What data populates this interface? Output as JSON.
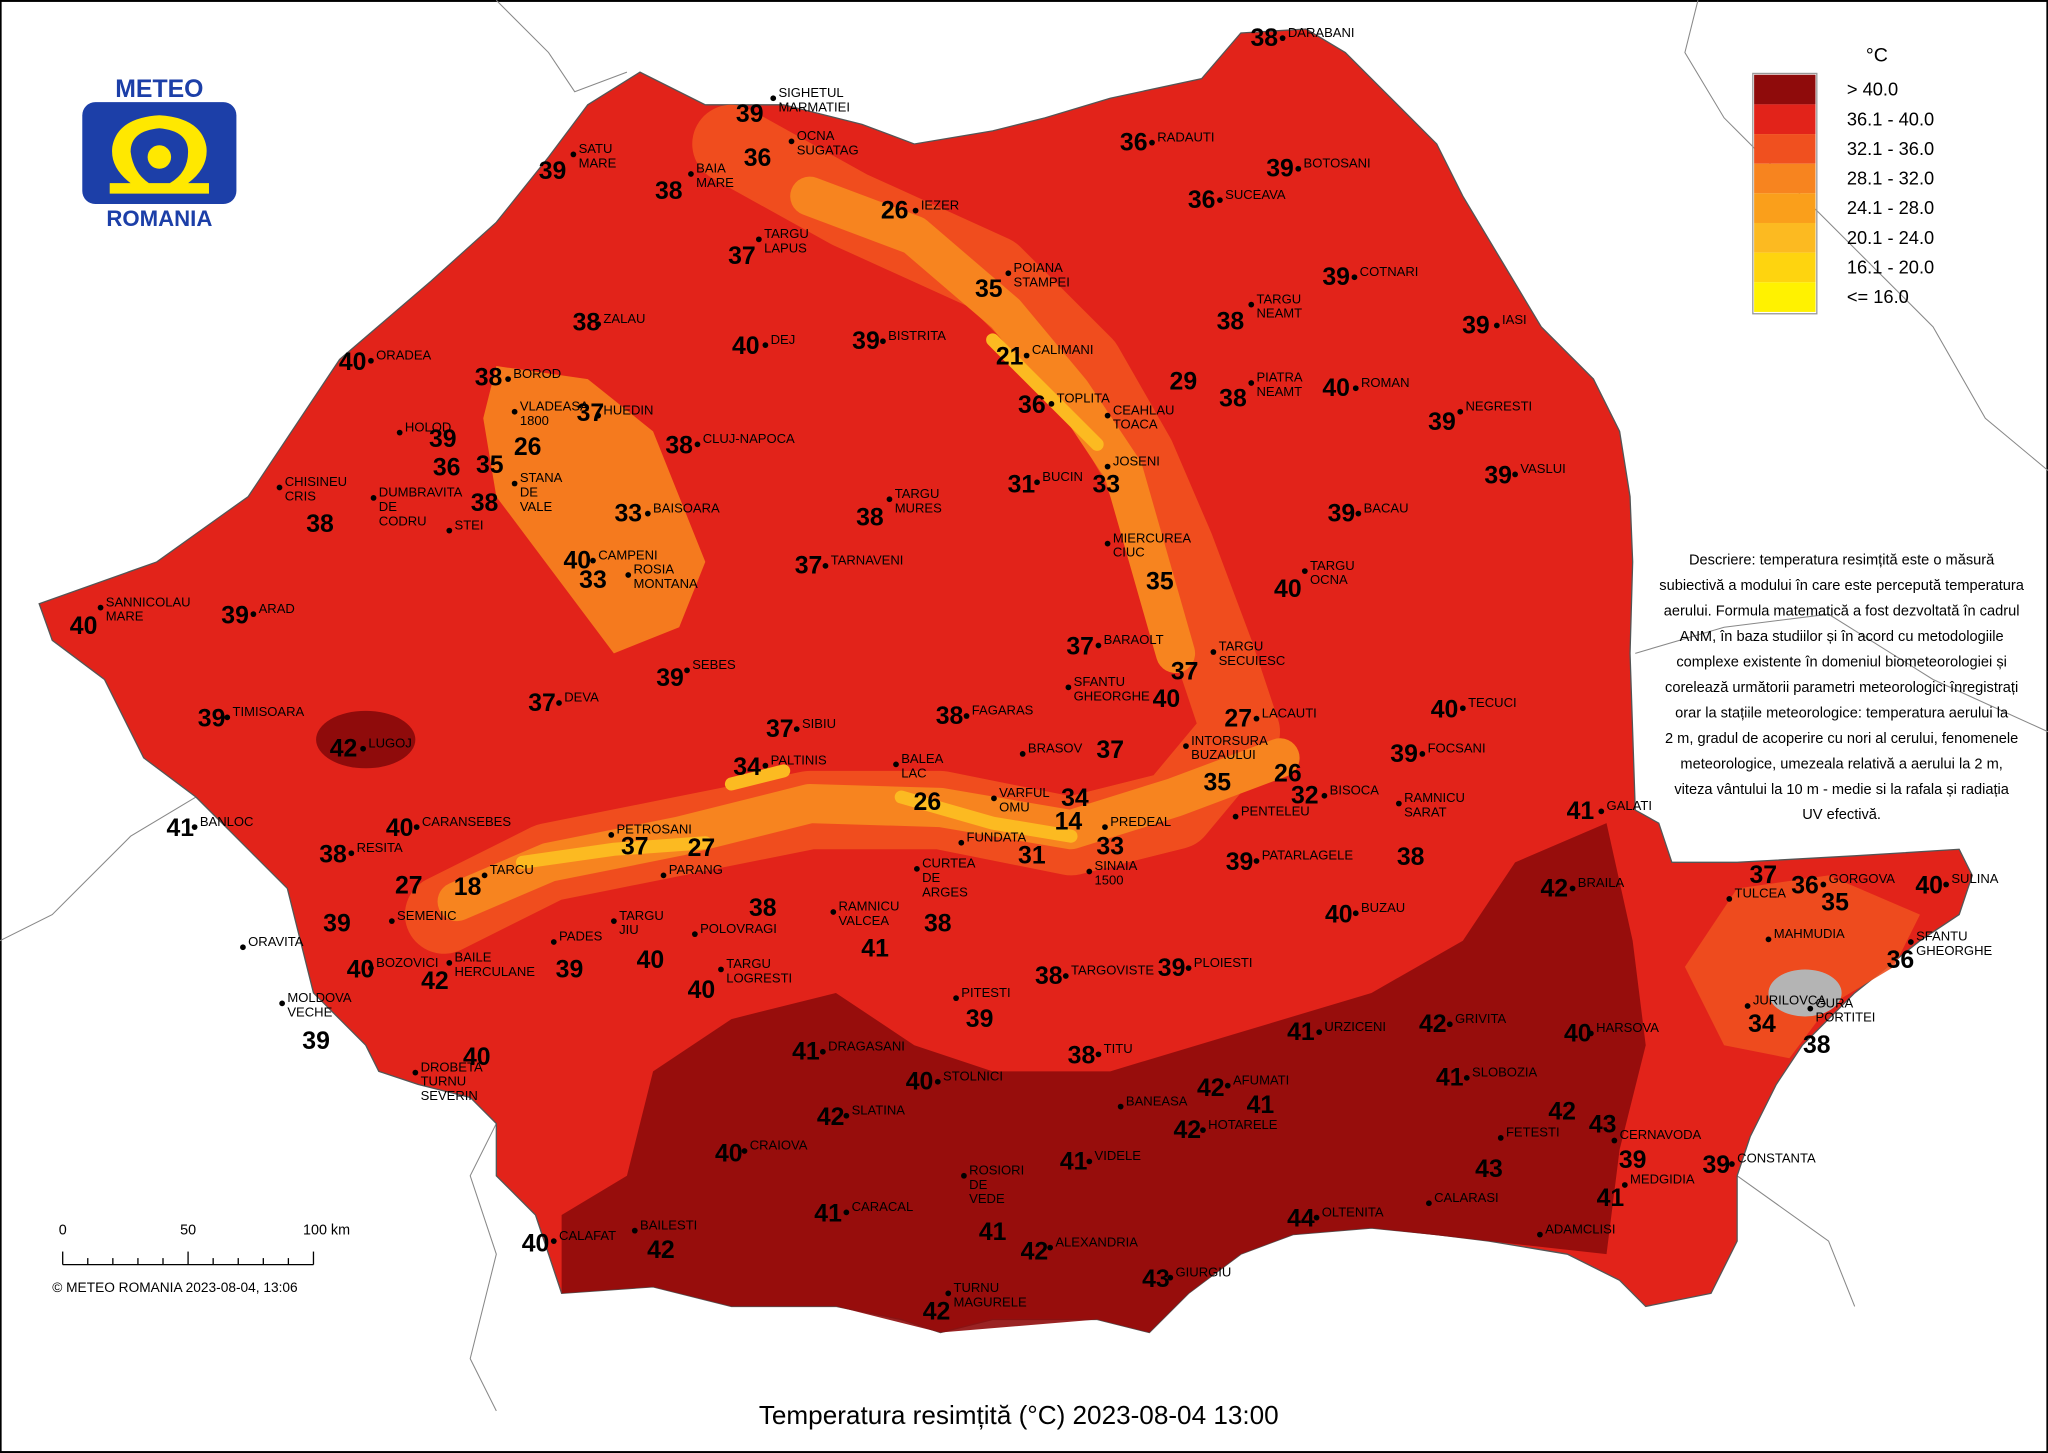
{
  "logo": {
    "top": "METEO",
    "bottom": "ROMANIA"
  },
  "legend": {
    "title": "°C",
    "items": [
      {
        "label": "> 40.0",
        "color": "#8f0b0b"
      },
      {
        "label": "36.1 - 40.0",
        "color": "#e2231a"
      },
      {
        "label": "32.1 - 36.0",
        "color": "#f0501f"
      },
      {
        "label": "28.1 - 32.0",
        "color": "#f7841f"
      },
      {
        "label": "24.1 - 28.0",
        "color": "#fa9f1b"
      },
      {
        "label": "20.1 - 24.0",
        "color": "#fcba21"
      },
      {
        "label": "16.1 - 20.0",
        "color": "#fed40f"
      },
      {
        "label": "<= 16.0",
        "color": "#fff200"
      }
    ]
  },
  "description": [
    "Descriere: temperatura resimțită este o măsură",
    "subiectivă a modului în care este percepută temperatura",
    "aerului. Formula matematică a fost dezvoltată în cadrul",
    "ANM, în baza studiilor și în acord cu metodologiile",
    "complexe existente în domeniul biometeorologiei și",
    "corelează următorii parametri meteorologici înregistrați",
    "orar la stațiile meteorologice: temperatura aerului la",
    "2 m, gradul de acoperire cu nori al cerului, fenomenele",
    "meteorologice, umezeala relativă a aerului la 2 m,",
    "viteza vântului la 10 m - medie si la rafala și radiația",
    "UV efectivă."
  ],
  "scale_bar": {
    "labels": [
      "0",
      "50",
      "100 km"
    ]
  },
  "copyright": "© METEO ROMANIA 2023-08-04, 13:06",
  "title": "Temperatura resimțită (°C) 2023-08-04 13:00",
  "stations": [
    {
      "name": [
        "DARABANI"
      ],
      "value": 38
    },
    {
      "name": [
        "SIGHETUL",
        "MARMATIEI"
      ],
      "value": 39
    },
    {
      "name": [
        "OCNA",
        "SUGATAG"
      ],
      "value": 36
    },
    {
      "name": [
        "SATU",
        "MARE"
      ],
      "value": 39
    },
    {
      "name": [
        "BAIA",
        "MARE"
      ],
      "value": 38
    },
    {
      "name": [
        "IEZER"
      ],
      "value": 26
    },
    {
      "name": [
        "RADAUTI"
      ],
      "value": 36
    },
    {
      "name": [
        "BOTOSANI"
      ],
      "value": 39
    },
    {
      "name": [
        "SUCEAVA"
      ],
      "value": 36
    },
    {
      "name": [
        "TARGU",
        "LAPUS"
      ],
      "value": 37
    },
    {
      "name": [
        "POIANA",
        "STAMPEI"
      ],
      "value": 35
    },
    {
      "name": [
        "COTNARI"
      ],
      "value": 39
    },
    {
      "name": [
        "ZALAU"
      ],
      "value": 38
    },
    {
      "name": [
        "TARGU",
        "NEAMT"
      ],
      "value": 38
    },
    {
      "name": [
        "IASI"
      ],
      "value": 39
    },
    {
      "name": [
        "DEJ"
      ],
      "value": 40
    },
    {
      "name": [
        "BISTRITA"
      ],
      "value": 39
    },
    {
      "name": [
        "CALIMANI"
      ],
      "value": 21
    },
    {
      "name": [
        "ORADEA"
      ],
      "value": 40
    },
    {
      "name": [
        "BOROD"
      ],
      "value": 38
    },
    {
      "name": [
        "PIATRA",
        "NEAMT"
      ],
      "value": 38
    },
    {
      "name": [
        "ROMAN"
      ],
      "value": 40
    },
    {
      "name": [
        "TOPLITA"
      ],
      "value": 36
    },
    {
      "name": [
        "CEAHLAU",
        "TOACA"
      ],
      "value": 29
    },
    {
      "name": [
        "VLADEASA",
        "1800"
      ],
      "value": 26
    },
    {
      "name": [
        "HUEDIN"
      ],
      "value": 37
    },
    {
      "name": [
        "STANA",
        "DE",
        "VALE"
      ],
      "value": 35
    },
    {
      "name": [
        "NEGRESTI"
      ],
      "value": 39
    },
    {
      "name": [
        "HOLOD"
      ],
      "value": 39
    },
    {
      "name": [
        "CLUJ-NAPOCA"
      ],
      "value": 38
    },
    {
      "name": [
        "DUMBRAVITA",
        "DE",
        "CODRU"
      ],
      "value": 36
    },
    {
      "name": [
        "JOSENI"
      ],
      "value": 33
    },
    {
      "name": [
        "BUCIN"
      ],
      "value": 31
    },
    {
      "name": [
        "VASLUI"
      ],
      "value": 39
    },
    {
      "name": [
        "CHISINEU",
        "CRIS"
      ],
      "value": 38
    },
    {
      "name": [
        "STEI"
      ],
      "value": 38
    },
    {
      "name": [
        "BAISOARA"
      ],
      "value": 33
    },
    {
      "name": [
        "TARGU",
        "MURES"
      ],
      "value": 38
    },
    {
      "name": [
        "BACAU"
      ],
      "value": 39
    },
    {
      "name": [
        "CAMPENI"
      ],
      "value": 40
    },
    {
      "name": [
        "ROSIA",
        "MONTANA"
      ],
      "value": 33
    },
    {
      "name": [
        "TARNAVENI"
      ],
      "value": 37
    },
    {
      "name": [
        "MIERCUREA",
        "CIUC"
      ],
      "value": 35
    },
    {
      "name": [
        "TARGU",
        "OCNA"
      ],
      "value": 40
    },
    {
      "name": [
        "SANNICOLAU",
        "MARE"
      ],
      "value": 40
    },
    {
      "name": [
        "ARAD"
      ],
      "value": 39
    },
    {
      "name": [
        "BARAOLT"
      ],
      "value": 37
    },
    {
      "name": [
        "SEBES"
      ],
      "value": 39
    },
    {
      "name": [
        "TARGU",
        "SECUIESC"
      ],
      "value": 37
    },
    {
      "name": [
        "SFANTU",
        "GHEORGHE"
      ],
      "value": 40
    },
    {
      "name": [
        "DEVA"
      ],
      "value": 37
    },
    {
      "name": [
        "LACAUTI"
      ],
      "value": 27
    },
    {
      "name": [
        "TECUCI"
      ],
      "value": 40
    },
    {
      "name": [
        "TIMISOARA"
      ],
      "value": 39
    },
    {
      "name": [
        "SIBIU"
      ],
      "value": 37
    },
    {
      "name": [
        "FAGARAS"
      ],
      "value": 38
    },
    {
      "name": [
        "INTORSURA",
        "BUZAULUI"
      ],
      "value": 35
    },
    {
      "name": [
        "LUGOJ"
      ],
      "value": 42
    },
    {
      "name": [
        "BRASOV"
      ],
      "value": 37
    },
    {
      "name": [
        "PALTINIS"
      ],
      "value": 34
    },
    {
      "name": [
        "FOCSANI"
      ],
      "value": 39
    },
    {
      "name": [
        "BALEA",
        "LAC"
      ],
      "value": 26
    },
    {
      "name": [
        "VARFUL",
        "OMU"
      ],
      "value": 34
    },
    {
      "name": [
        "PENTELEU"
      ],
      "value": 26
    },
    {
      "name": [
        "BISOCA"
      ],
      "value": 32
    },
    {
      "name": [
        "RAMNICU",
        "SARAT"
      ],
      "value": 38
    },
    {
      "name": [
        "GALATI"
      ],
      "value": 41
    },
    {
      "name": [
        "BANLOC"
      ],
      "value": 41
    },
    {
      "name": [
        "CARANSEBES"
      ],
      "value": 40
    },
    {
      "name": [
        "PETROSANI"
      ],
      "value": 37
    },
    {
      "name": [
        "PARANG"
      ],
      "value": 27
    },
    {
      "name": [
        "FUNDATA"
      ],
      "value": 31
    },
    {
      "name": [
        "PREDEAL"
      ],
      "value": 14
    },
    {
      "name": [
        "SINAIA",
        "1500"
      ],
      "value": 33
    },
    {
      "name": [
        "PATARLAGELE"
      ],
      "value": 39
    },
    {
      "name": [
        "RESITA"
      ],
      "value": 38
    },
    {
      "name": [
        "SEMENIC"
      ],
      "value": 27
    },
    {
      "name": [
        "TARCU"
      ],
      "value": 18
    },
    {
      "name": [
        "CURTEA",
        "DE",
        "ARGES"
      ],
      "value": 38
    },
    {
      "name": [
        "BRAILA"
      ],
      "value": 42
    },
    {
      "name": [
        "TULCEA"
      ],
      "value": 37
    },
    {
      "name": [
        "GORGOVA"
      ],
      "value": 36
    },
    {
      "name": [
        "SULINA"
      ],
      "value": 40
    },
    {
      "name": [
        "MAHMUDIA"
      ],
      "value": 35
    },
    {
      "name": [
        "BUZAU"
      ],
      "value": 40
    },
    {
      "name": [
        "ORAVITA"
      ],
      "value": 39
    },
    {
      "name": [
        "PADES"
      ],
      "value": 39
    },
    {
      "name": [
        "TARGU",
        "JIU"
      ],
      "value": 40
    },
    {
      "name": [
        "POLOVRAGI"
      ],
      "value": 38
    },
    {
      "name": [
        "RAMNICU",
        "VALCEA"
      ],
      "value": 41
    },
    {
      "name": [
        "SFANTU",
        "GHEORGHE"
      ],
      "value": 36
    },
    {
      "name": [
        "BAILE",
        "HERCULANE"
      ],
      "value": 42
    },
    {
      "name": [
        "BOZOVICI"
      ],
      "value": 40
    },
    {
      "name": [
        "TARGOVISTE"
      ],
      "value": 38
    },
    {
      "name": [
        "PLOIESTI"
      ],
      "value": 39
    },
    {
      "name": [
        "TARGU",
        "LOGRESTI"
      ],
      "value": 40
    },
    {
      "name": [
        "PITESTI"
      ],
      "value": 39
    },
    {
      "name": [
        "MOLDOVA",
        "VECHE"
      ],
      "value": 39
    },
    {
      "name": [
        "JURILOVCA"
      ],
      "value": 34
    },
    {
      "name": [
        "GURA",
        "PORTITEI"
      ],
      "value": 38
    },
    {
      "name": [
        "URZICENI"
      ],
      "value": 41
    },
    {
      "name": [
        "GRIVITA"
      ],
      "value": 42
    },
    {
      "name": [
        "HARSOVA"
      ],
      "value": 40
    },
    {
      "name": [
        "DROBETA",
        "TURNU",
        "SEVERIN"
      ],
      "value": 40
    },
    {
      "name": [
        "TITU"
      ],
      "value": 38
    },
    {
      "name": [
        "DRAGASANI"
      ],
      "value": 41
    },
    {
      "name": [
        "SLOBOZIA"
      ],
      "value": 41
    },
    {
      "name": [
        "STOLNICI"
      ],
      "value": 40
    },
    {
      "name": [
        "AFUMATI"
      ],
      "value": 42
    },
    {
      "name": [
        "BANEASA"
      ],
      "value": 41
    },
    {
      "name": [
        "FETESTI"
      ],
      "value": 42
    },
    {
      "name": [
        "CERNAVODA"
      ],
      "value": 43
    },
    {
      "name": [
        "SLATINA"
      ],
      "value": 42
    },
    {
      "name": [
        "HOTARELE"
      ],
      "value": 42
    },
    {
      "name": [
        "CRAIOVA"
      ],
      "value": 40
    },
    {
      "name": [
        "VIDELE"
      ],
      "value": 41
    },
    {
      "name": [
        "MEDGIDIA"
      ],
      "value": 39
    },
    {
      "name": [
        "CONSTANTA"
      ],
      "value": 39
    },
    {
      "name": [
        "CALARASI"
      ],
      "value": 43
    },
    {
      "name": [
        "ROSIORI",
        "DE",
        "VEDE"
      ],
      "value": 41
    },
    {
      "name": [
        "ADAMCLISI"
      ],
      "value": 41
    },
    {
      "name": [
        "CARACAL"
      ],
      "value": 41
    },
    {
      "name": [
        "OLTENITA"
      ],
      "value": 44
    },
    {
      "name": [
        "CALAFAT"
      ],
      "value": 40
    },
    {
      "name": [
        "BAILESTI"
      ],
      "value": 42
    },
    {
      "name": [
        "ALEXANDRIA"
      ],
      "value": 42
    },
    {
      "name": [
        "GIURGIU"
      ],
      "value": 43
    },
    {
      "name": [
        "TURNU",
        "MAGURELE"
      ],
      "value": 42
    }
  ]
}
